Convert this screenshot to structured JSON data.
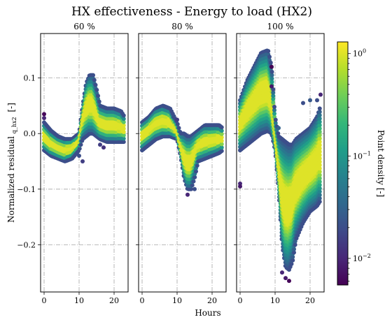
{
  "chart_data": {
    "type": "scatter",
    "title": "HX effectiveness - Energy to load (HX2)",
    "ylabel": "Normalized residual",
    "ylabel_subscript": "q_hx2",
    "ylabel_unit": "[-]",
    "xlabel": "Hours",
    "x_ticks": [
      0,
      10,
      20
    ],
    "y_ticks": [
      0.1,
      0.0,
      -0.1,
      -0.2
    ],
    "y_tick_labels": [
      "0.1",
      "0.0",
      "−0.1",
      "−0.2"
    ],
    "xlim": [
      -1,
      24
    ],
    "ylim": [
      -0.285,
      0.18
    ],
    "grid": true,
    "panels": [
      {
        "title": "60 %",
        "band": [
          {
            "h": 0,
            "lo": -0.03,
            "hi": 0.02
          },
          {
            "h": 2,
            "lo": -0.04,
            "hi": 0.005
          },
          {
            "h": 4,
            "lo": -0.045,
            "hi": -0.005
          },
          {
            "h": 6,
            "lo": -0.05,
            "hi": -0.01
          },
          {
            "h": 8,
            "lo": -0.045,
            "hi": -0.01
          },
          {
            "h": 10,
            "lo": -0.03,
            "hi": 0.0
          },
          {
            "h": 11,
            "lo": -0.01,
            "hi": 0.05
          },
          {
            "h": 12,
            "lo": -0.005,
            "hi": 0.09
          },
          {
            "h": 13,
            "lo": 0.0,
            "hi": 0.105
          },
          {
            "h": 14,
            "lo": 0.0,
            "hi": 0.105
          },
          {
            "h": 15,
            "lo": -0.005,
            "hi": 0.08
          },
          {
            "h": 16,
            "lo": -0.01,
            "hi": 0.05
          },
          {
            "h": 18,
            "lo": -0.015,
            "hi": 0.045
          },
          {
            "h": 20,
            "lo": -0.015,
            "hi": 0.045
          },
          {
            "h": 22,
            "lo": -0.015,
            "hi": 0.04
          },
          {
            "h": 23,
            "lo": -0.015,
            "hi": 0.03
          }
        ],
        "outliers": [
          {
            "h": 0,
            "v": 0.035,
            "d": 0.006
          },
          {
            "h": 0,
            "v": 0.028,
            "d": 0.01
          },
          {
            "h": 10,
            "v": -0.04,
            "d": 0.02
          },
          {
            "h": 11,
            "v": -0.05,
            "d": 0.015
          },
          {
            "h": 16,
            "v": -0.02,
            "d": 0.015
          },
          {
            "h": 17,
            "v": -0.025,
            "d": 0.012
          }
        ]
      },
      {
        "title": "80 %",
        "band": [
          {
            "h": 0,
            "lo": -0.03,
            "hi": 0.02
          },
          {
            "h": 2,
            "lo": -0.02,
            "hi": 0.03
          },
          {
            "h": 4,
            "lo": -0.01,
            "hi": 0.045
          },
          {
            "h": 6,
            "lo": -0.005,
            "hi": 0.05
          },
          {
            "h": 8,
            "lo": -0.005,
            "hi": 0.045
          },
          {
            "h": 10,
            "lo": -0.01,
            "hi": 0.02
          },
          {
            "h": 11,
            "lo": -0.04,
            "hi": 0.0
          },
          {
            "h": 12,
            "lo": -0.08,
            "hi": 0.0
          },
          {
            "h": 13,
            "lo": -0.1,
            "hi": -0.005
          },
          {
            "h": 14,
            "lo": -0.1,
            "hi": -0.005
          },
          {
            "h": 15,
            "lo": -0.08,
            "hi": 0.0
          },
          {
            "h": 16,
            "lo": -0.05,
            "hi": 0.005
          },
          {
            "h": 18,
            "lo": -0.045,
            "hi": 0.015
          },
          {
            "h": 20,
            "lo": -0.04,
            "hi": 0.015
          },
          {
            "h": 22,
            "lo": -0.035,
            "hi": 0.015
          },
          {
            "h": 23,
            "lo": -0.03,
            "hi": 0.01
          }
        ],
        "outliers": [
          {
            "h": 9,
            "v": 0.03,
            "d": 0.02
          },
          {
            "h": 10,
            "v": 0.025,
            "d": 0.015
          },
          {
            "h": 13,
            "v": -0.11,
            "d": 0.01
          },
          {
            "h": 15,
            "v": -0.1,
            "d": 0.02
          }
        ]
      },
      {
        "title": "100 %",
        "band": [
          {
            "h": 0,
            "lo": -0.03,
            "hi": 0.06
          },
          {
            "h": 2,
            "lo": -0.02,
            "hi": 0.095
          },
          {
            "h": 4,
            "lo": -0.01,
            "hi": 0.12
          },
          {
            "h": 6,
            "lo": 0.0,
            "hi": 0.145
          },
          {
            "h": 8,
            "lo": 0.005,
            "hi": 0.15
          },
          {
            "h": 9,
            "lo": 0.0,
            "hi": 0.12
          },
          {
            "h": 10,
            "lo": -0.03,
            "hi": 0.03
          },
          {
            "h": 11,
            "lo": -0.1,
            "hi": -0.005
          },
          {
            "h": 12,
            "lo": -0.2,
            "hi": -0.01
          },
          {
            "h": 13,
            "lo": -0.24,
            "hi": -0.015
          },
          {
            "h": 14,
            "lo": -0.245,
            "hi": -0.02
          },
          {
            "h": 15,
            "lo": -0.23,
            "hi": -0.02
          },
          {
            "h": 16,
            "lo": -0.19,
            "hi": -0.01
          },
          {
            "h": 18,
            "lo": -0.16,
            "hi": 0.0
          },
          {
            "h": 20,
            "lo": -0.14,
            "hi": 0.01
          },
          {
            "h": 22,
            "lo": -0.13,
            "hi": 0.03
          },
          {
            "h": 23,
            "lo": -0.12,
            "hi": 0.05
          }
        ],
        "outliers": [
          {
            "h": 0,
            "v": -0.09,
            "d": 0.01
          },
          {
            "h": 0,
            "v": -0.095,
            "d": 0.008
          },
          {
            "h": 9,
            "v": 0.12,
            "d": 0.005
          },
          {
            "h": 9,
            "v": 0.085,
            "d": 0.008
          },
          {
            "h": 12,
            "v": -0.25,
            "d": 0.01
          },
          {
            "h": 13,
            "v": -0.26,
            "d": 0.008
          },
          {
            "h": 14,
            "v": -0.265,
            "d": 0.006
          },
          {
            "h": 18,
            "v": 0.055,
            "d": 0.02
          },
          {
            "h": 20,
            "v": 0.06,
            "d": 0.025
          },
          {
            "h": 22,
            "v": 0.06,
            "d": 0.02
          },
          {
            "h": 23,
            "v": 0.07,
            "d": 0.01
          },
          {
            "h": 11,
            "v": 0.01,
            "d": 0.03
          }
        ]
      }
    ],
    "colorbar": {
      "label": "Point density [-]",
      "scale": "log",
      "range": [
        0.0055,
        1.3
      ],
      "ticks": [
        {
          "v": 1,
          "base": "10",
          "exp": "0"
        },
        {
          "v": 0.1,
          "base": "10",
          "exp": "−1"
        },
        {
          "v": 0.01,
          "base": "10",
          "exp": "−2"
        }
      ],
      "colormap": "viridis",
      "colors": [
        "#440154",
        "#482878",
        "#3e4a89",
        "#31688e",
        "#26828e",
        "#1f9e89",
        "#35b779",
        "#6ece58",
        "#b5de2b",
        "#fde725"
      ]
    }
  }
}
